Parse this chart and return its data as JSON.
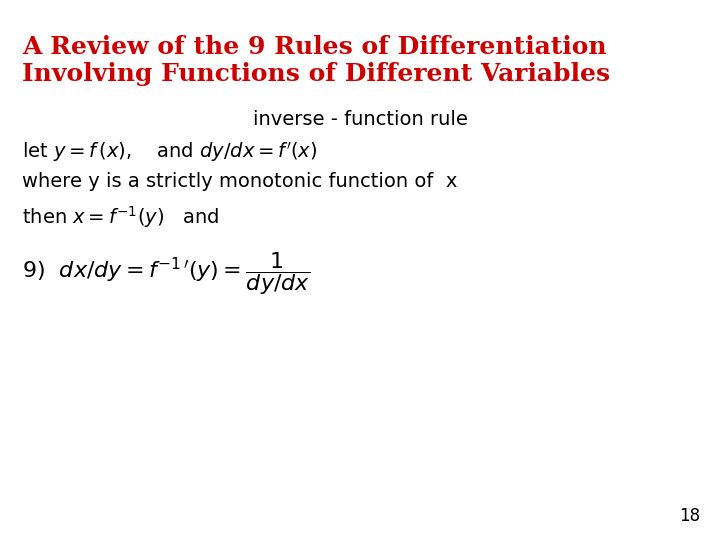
{
  "title_line1": "A Review of the 9 Rules of Differentiation",
  "title_line2": "Involving Functions of Different Variables",
  "title_color": "#cc0000",
  "title_fontsize": 18,
  "body_fontsize": 14,
  "body_color": "#000000",
  "background_color": "#ffffff",
  "page_number": "18"
}
